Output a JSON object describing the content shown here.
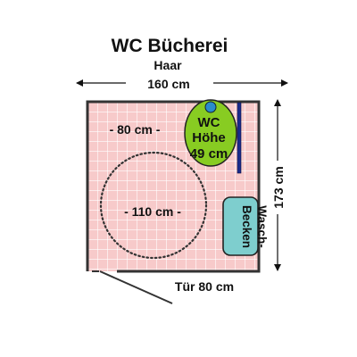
{
  "title": "WC Bücherei",
  "subtitle": "Haar",
  "dimensions": {
    "width_label": "160 cm",
    "height_label": "173 cm",
    "door_label": "Tür 80 cm"
  },
  "wc": {
    "line1": "WC",
    "line2": "Höhe",
    "line3": "49 cm"
  },
  "front_space_label": "- 80 cm -",
  "turning_circle_label": "- 110 cm -",
  "sink": {
    "line1": "Wasch-",
    "line2": "Becken"
  },
  "colors": {
    "floor": "#f7caca",
    "tile_grid": "#ffffff",
    "wall": "#333333",
    "wc_bowl": "#88cc22",
    "flush_button": "#2a8ccc",
    "grab_bar": "#1a2a8c",
    "sink": "#7ecece",
    "dimension_line": "#111111"
  }
}
